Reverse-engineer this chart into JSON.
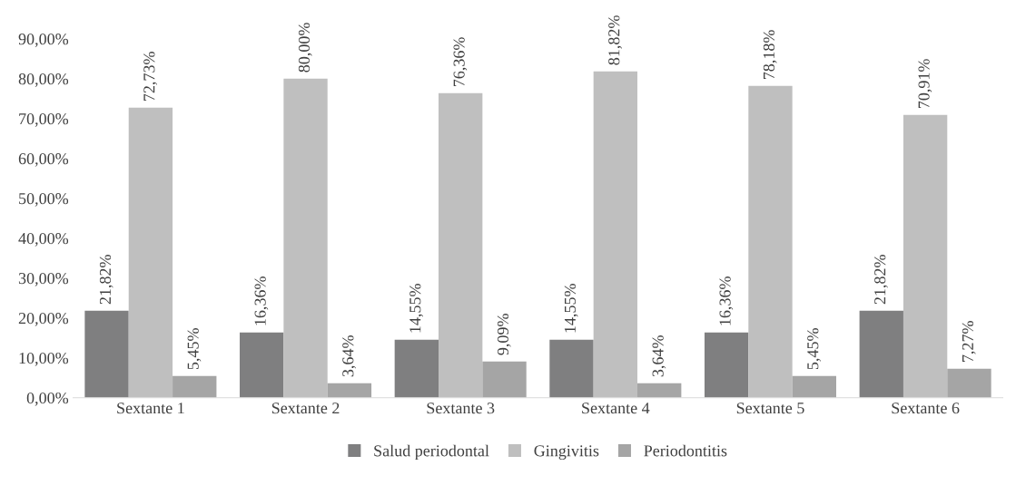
{
  "chart_data": {
    "type": "bar",
    "categories": [
      "Sextante 1",
      "Sextante 2",
      "Sextante 3",
      "Sextante 4",
      "Sextante 5",
      "Sextante 6"
    ],
    "series": [
      {
        "name": "Salud periodontal",
        "color": "#7f7f80",
        "values": [
          21.82,
          16.36,
          14.55,
          14.55,
          16.36,
          21.82
        ],
        "value_labels": [
          "21,82%",
          "16,36%",
          "14,55%",
          "14,55%",
          "16,36%",
          "21,82%"
        ]
      },
      {
        "name": "Gingivitis",
        "color": "#bfbfbf",
        "values": [
          72.73,
          80.0,
          76.36,
          81.82,
          78.18,
          70.91
        ],
        "value_labels": [
          "72,73%",
          "80,00%",
          "76,36%",
          "81,82%",
          "78,18%",
          "70,91%"
        ]
      },
      {
        "name": "Periodontitis",
        "color": "#a5a5a5",
        "values": [
          5.45,
          3.64,
          9.09,
          3.64,
          5.45,
          7.27
        ],
        "value_labels": [
          "5,45%",
          "3,64%",
          "9,09%",
          "3,64%",
          "5,45%",
          "7,27%"
        ]
      }
    ],
    "ylim": [
      0,
      90
    ],
    "yticks": [
      {
        "value": 0,
        "label": "0,00%"
      },
      {
        "value": 10,
        "label": "10,00%"
      },
      {
        "value": 20,
        "label": "20,00%"
      },
      {
        "value": 30,
        "label": "30,00%"
      },
      {
        "value": 40,
        "label": "40,00%"
      },
      {
        "value": 50,
        "label": "50,00%"
      },
      {
        "value": 60,
        "label": "60,00%"
      },
      {
        "value": 70,
        "label": "70,00%"
      },
      {
        "value": 80,
        "label": "80,00%"
      },
      {
        "value": 90,
        "label": "90,00%"
      }
    ],
    "grid": false,
    "legend": "bottom"
  }
}
